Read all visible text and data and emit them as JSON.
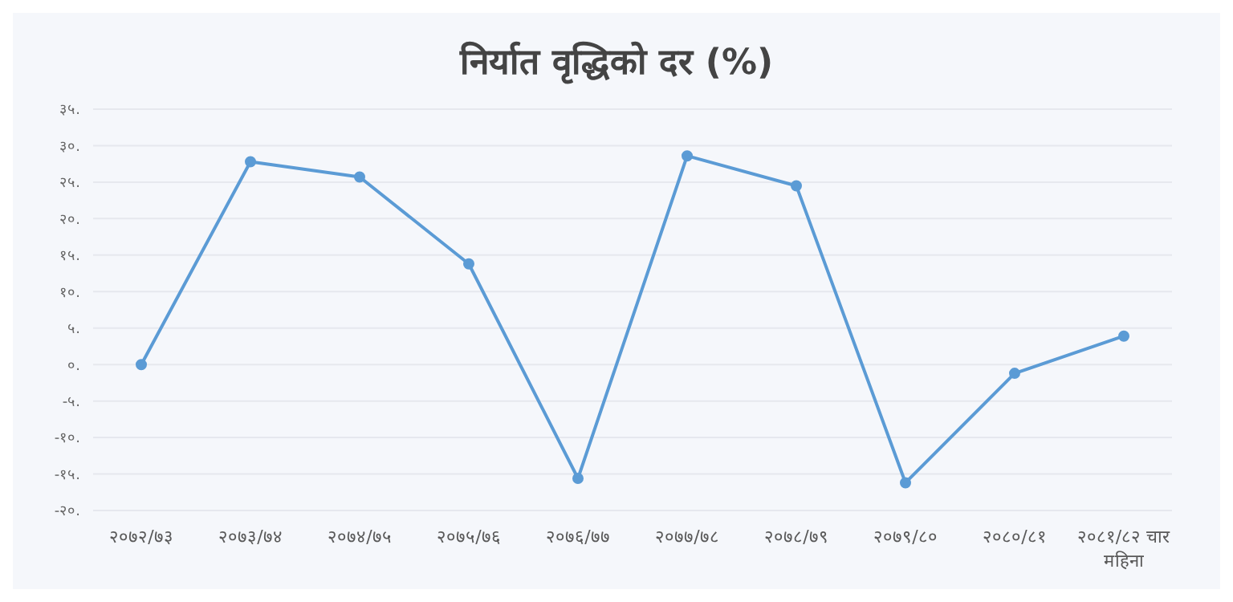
{
  "chart_data": {
    "type": "line",
    "title": "निर्यात वृद्धिको दर (%)",
    "categories": [
      "२०७२/७३",
      "२०७३/७४",
      "२०७४/७५",
      "२०७५/७६",
      "२०७६/७७",
      "२०७७/७८",
      "२०७८/७९",
      "२०७९/८०",
      "२०८०/८१",
      "२०८१/८२ चार महिना"
    ],
    "series": [
      {
        "color": "#5b9bd5",
        "values": [
          0,
          27.8,
          25.7,
          13.8,
          -15.6,
          28.6,
          24.5,
          -16.2,
          -1.2,
          3.9
        ]
      }
    ],
    "ylim": [
      -20,
      35
    ],
    "yticks": [
      {
        "value": -20,
        "label": "-२०."
      },
      {
        "value": -15,
        "label": "-१५."
      },
      {
        "value": -10,
        "label": "-१०."
      },
      {
        "value": -5,
        "label": "-५."
      },
      {
        "value": 0,
        "label": "०."
      },
      {
        "value": 5,
        "label": "५."
      },
      {
        "value": 10,
        "label": "१०."
      },
      {
        "value": 15,
        "label": "१५."
      },
      {
        "value": 20,
        "label": "२०."
      },
      {
        "value": 25,
        "label": "२५."
      },
      {
        "value": 30,
        "label": "३०."
      },
      {
        "value": 35,
        "label": "३५."
      }
    ],
    "grid": "y",
    "marker": "circle",
    "line_style": "solid",
    "legend": false
  }
}
